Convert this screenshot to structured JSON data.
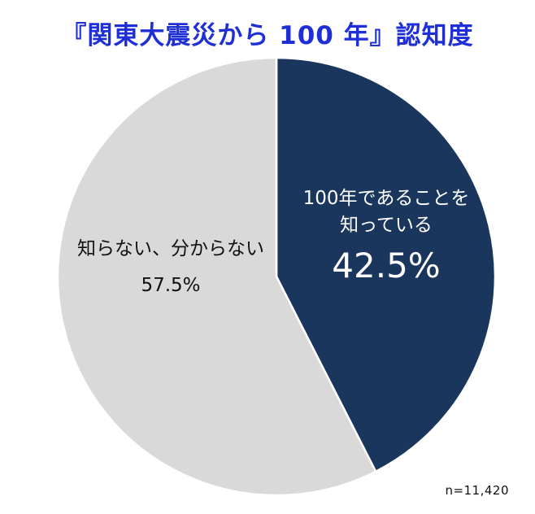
{
  "title": "『関東大震災から 100 年』認知度",
  "sample_size": "n=11,420",
  "colors": {
    "title": "#1f2fd6",
    "known": "#1a365d",
    "unknown": "#d9d9d9"
  },
  "chart_data": {
    "type": "pie",
    "title": "『関東大震災から 100 年』認知度",
    "slices": [
      {
        "label_line1": "100年であることを",
        "label_line2": "知っている",
        "value": 42.5,
        "value_label": "42.5%",
        "color": "#1a365d"
      },
      {
        "label_line1": "知らない、分からない",
        "value": 57.5,
        "value_label": "57.5%",
        "color": "#d9d9d9"
      }
    ],
    "start_angle": "12 o'clock",
    "direction": "clockwise",
    "legend": "none"
  }
}
